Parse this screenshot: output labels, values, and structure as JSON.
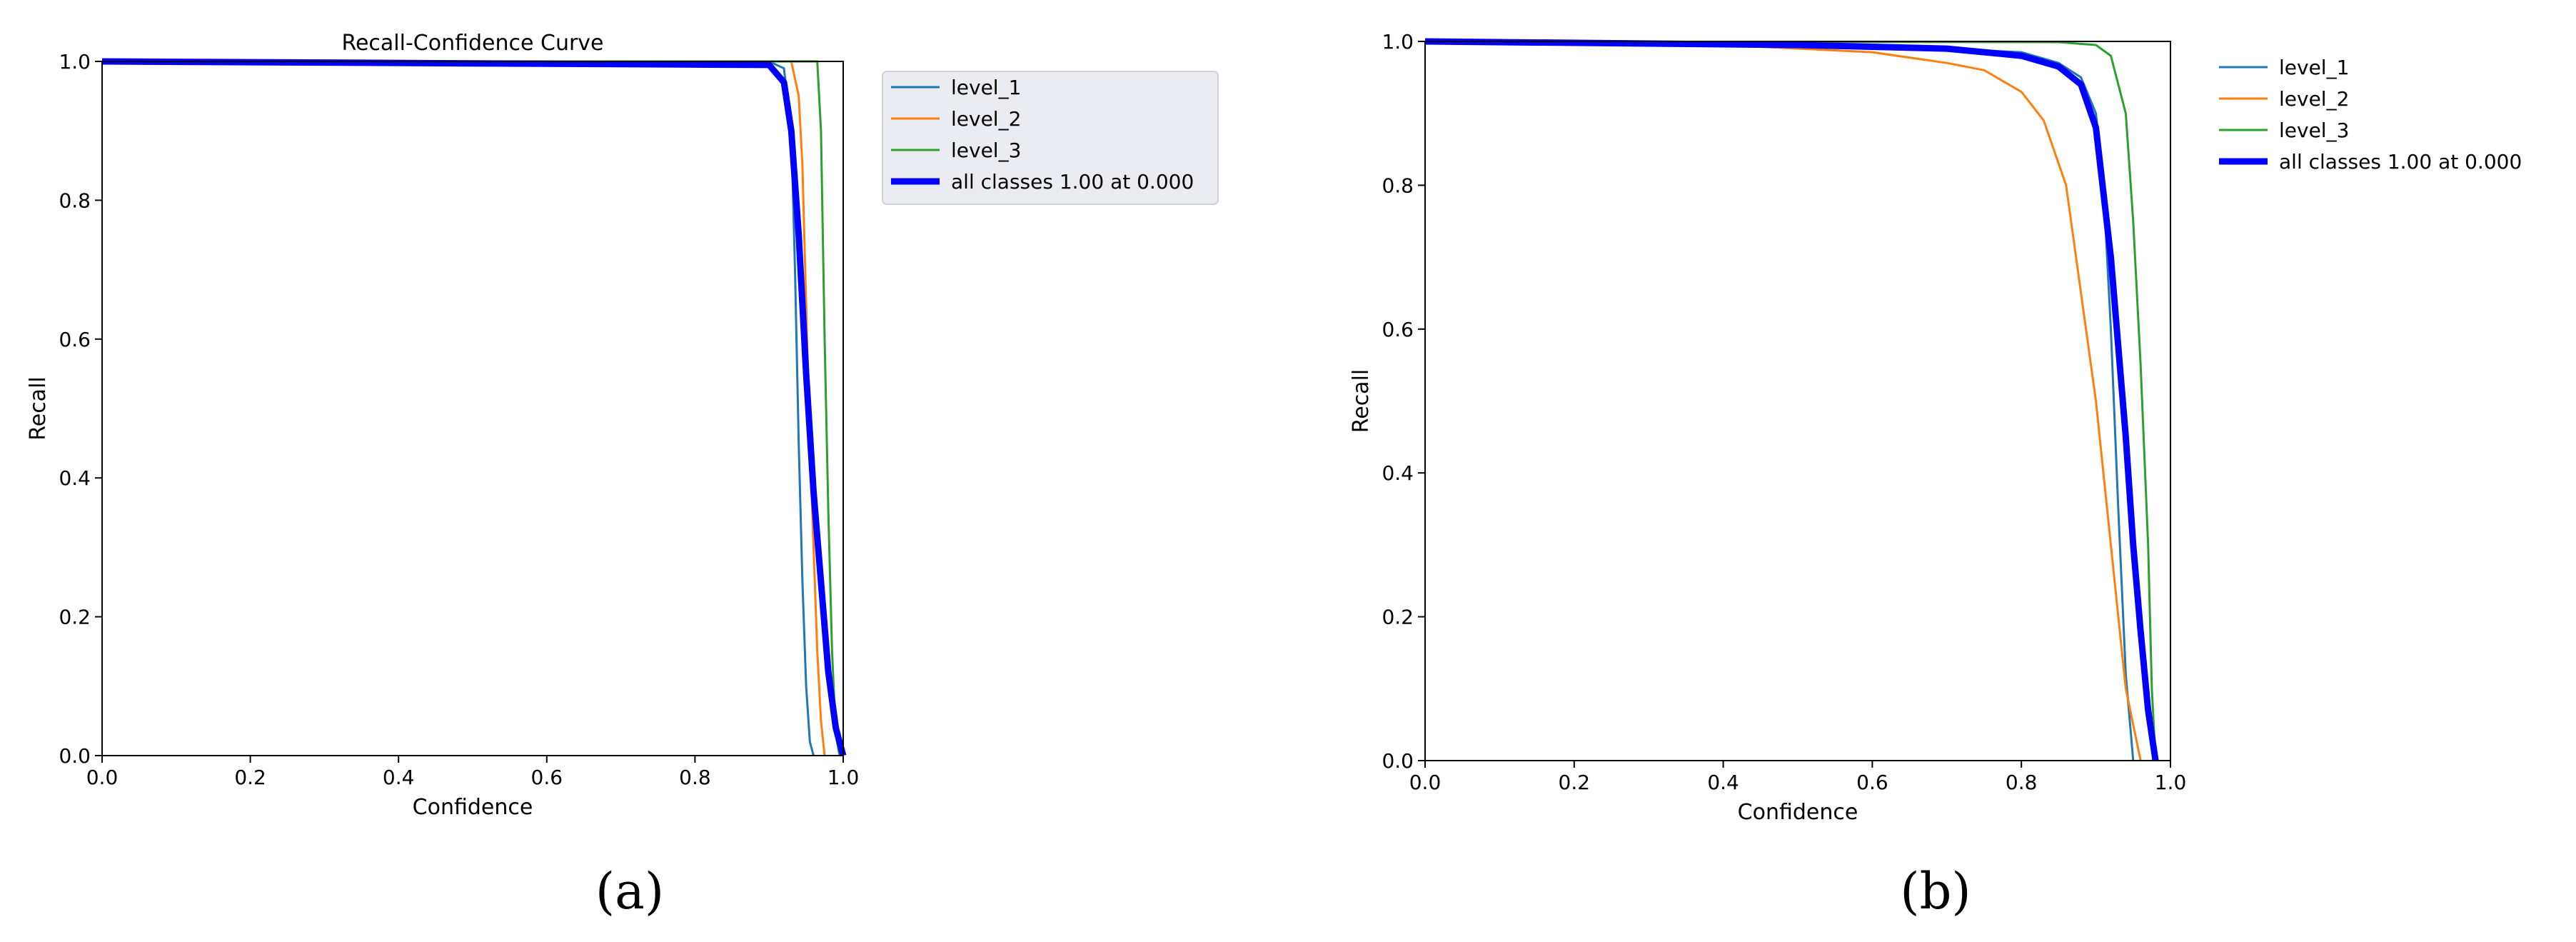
{
  "figure": {
    "subfigures": [
      {
        "caption": "(a)",
        "chart_index": 0
      },
      {
        "caption": "(b)",
        "chart_index": 1
      }
    ]
  },
  "chart_data": [
    {
      "type": "line",
      "title": "Recall-Confidence Curve",
      "xlabel": "Confidence",
      "ylabel": "Recall",
      "xlim": [
        0,
        1
      ],
      "ylim": [
        0,
        1
      ],
      "xticks": [
        "0.0",
        "0.2",
        "0.4",
        "0.6",
        "0.8",
        "1.0"
      ],
      "yticks": [
        "0.0",
        "0.2",
        "0.4",
        "0.6",
        "0.8",
        "1.0"
      ],
      "grid": false,
      "legend_position": "outside-right-top",
      "legend_background": true,
      "series": [
        {
          "name": "level_1",
          "color": "#1f77b4",
          "linewidth": 1,
          "x": [
            0,
            0.9,
            0.92,
            0.93,
            0.935,
            0.94,
            0.945,
            0.95,
            0.955,
            0.96
          ],
          "y": [
            1.0,
            1.0,
            0.99,
            0.9,
            0.7,
            0.45,
            0.25,
            0.1,
            0.02,
            0.0
          ]
        },
        {
          "name": "level_2",
          "color": "#ff7f0e",
          "linewidth": 1,
          "x": [
            0,
            0.93,
            0.94,
            0.945,
            0.95,
            0.955,
            0.96,
            0.965,
            0.97,
            0.975
          ],
          "y": [
            1.0,
            1.0,
            0.95,
            0.85,
            0.65,
            0.45,
            0.3,
            0.15,
            0.05,
            0.0
          ]
        },
        {
          "name": "level_3",
          "color": "#2ca02c",
          "linewidth": 1,
          "x": [
            0,
            0.965,
            0.97,
            0.975,
            0.98,
            0.985,
            0.99,
            0.995
          ],
          "y": [
            1.0,
            1.0,
            0.9,
            0.6,
            0.35,
            0.15,
            0.03,
            0.0
          ]
        },
        {
          "name": "all classes 1.00 at 0.000",
          "color": "#0000ff",
          "linewidth": 3,
          "x": [
            0,
            0.9,
            0.92,
            0.93,
            0.94,
            0.95,
            0.96,
            0.97,
            0.98,
            0.99,
            1.0
          ],
          "y": [
            1.0,
            0.995,
            0.97,
            0.9,
            0.75,
            0.55,
            0.38,
            0.25,
            0.12,
            0.04,
            0.0
          ]
        }
      ]
    },
    {
      "type": "line",
      "title": "",
      "xlabel": "Confidence",
      "ylabel": "Recall",
      "xlim": [
        0,
        1
      ],
      "ylim": [
        0,
        1
      ],
      "xticks": [
        "0.0",
        "0.2",
        "0.4",
        "0.6",
        "0.8",
        "1.0"
      ],
      "yticks": [
        "0.0",
        "0.2",
        "0.4",
        "0.6",
        "0.8",
        "1.0"
      ],
      "grid": false,
      "legend_position": "outside-right-top",
      "legend_background": false,
      "series": [
        {
          "name": "level_1",
          "color": "#1f77b4",
          "linewidth": 1,
          "x": [
            0,
            0.5,
            0.7,
            0.8,
            0.85,
            0.88,
            0.9,
            0.91,
            0.92,
            0.93,
            0.94,
            0.95
          ],
          "y": [
            1.0,
            0.995,
            0.99,
            0.985,
            0.97,
            0.95,
            0.9,
            0.8,
            0.6,
            0.35,
            0.12,
            0.0
          ]
        },
        {
          "name": "level_2",
          "color": "#ff7f0e",
          "linewidth": 1,
          "x": [
            0,
            0.4,
            0.6,
            0.7,
            0.75,
            0.8,
            0.83,
            0.86,
            0.88,
            0.9,
            0.92,
            0.94,
            0.96
          ],
          "y": [
            1.0,
            0.995,
            0.985,
            0.97,
            0.96,
            0.93,
            0.89,
            0.8,
            0.65,
            0.5,
            0.3,
            0.1,
            0.0
          ]
        },
        {
          "name": "level_3",
          "color": "#2ca02c",
          "linewidth": 1,
          "x": [
            0,
            0.85,
            0.9,
            0.92,
            0.94,
            0.95,
            0.96,
            0.97,
            0.975,
            0.98
          ],
          "y": [
            1.0,
            0.999,
            0.995,
            0.98,
            0.9,
            0.75,
            0.55,
            0.3,
            0.1,
            0.0
          ]
        },
        {
          "name": "all classes 1.00 at 0.000",
          "color": "#0000ff",
          "linewidth": 3,
          "x": [
            0,
            0.5,
            0.7,
            0.8,
            0.85,
            0.88,
            0.9,
            0.92,
            0.94,
            0.95,
            0.96,
            0.97,
            0.98
          ],
          "y": [
            1.0,
            0.995,
            0.99,
            0.98,
            0.965,
            0.94,
            0.88,
            0.7,
            0.45,
            0.3,
            0.18,
            0.07,
            0.0
          ]
        }
      ]
    }
  ]
}
